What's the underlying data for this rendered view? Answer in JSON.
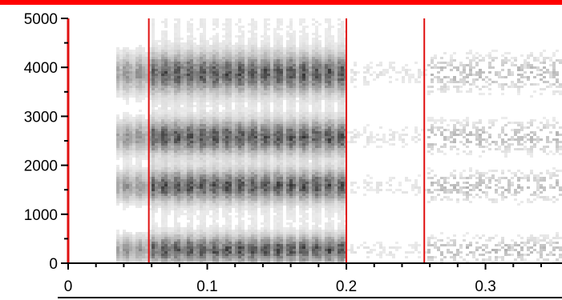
{
  "chart_data": {
    "type": "heatmap",
    "title": "",
    "xlabel": "",
    "ylabel": "",
    "xlim": [
      0,
      0.355
    ],
    "ylim": [
      0,
      5000
    ],
    "grid": false,
    "x_ticks": [
      "0",
      "0.1",
      "0.2",
      "0.3"
    ],
    "x_tick_values": [
      0,
      0.1,
      0.2,
      0.3
    ],
    "y_ticks": [
      "0",
      "1000",
      "2000",
      "3000",
      "4000",
      "5000"
    ],
    "y_tick_values": [
      0,
      1000,
      2000,
      3000,
      4000,
      5000
    ],
    "boundary_markers_s": [
      0.058,
      0.2,
      0.256
    ],
    "colors": {
      "marker": "#e01010",
      "background": "#ffffff",
      "ink": "#000000",
      "top_band": "#ff0000"
    },
    "segments": [
      {
        "start": 0.033,
        "end": 0.058,
        "intensity": 0.55
      },
      {
        "start": 0.058,
        "end": 0.2,
        "intensity": 0.9
      },
      {
        "start": 0.2,
        "end": 0.256,
        "intensity": 0.15
      },
      {
        "start": 0.256,
        "end": 0.355,
        "intensity": 0.35
      }
    ],
    "bands_hz": [
      {
        "center": 300,
        "width": 250
      },
      {
        "center": 1600,
        "width": 280
      },
      {
        "center": 2600,
        "width": 300
      },
      {
        "center": 3900,
        "width": 350
      }
    ]
  }
}
